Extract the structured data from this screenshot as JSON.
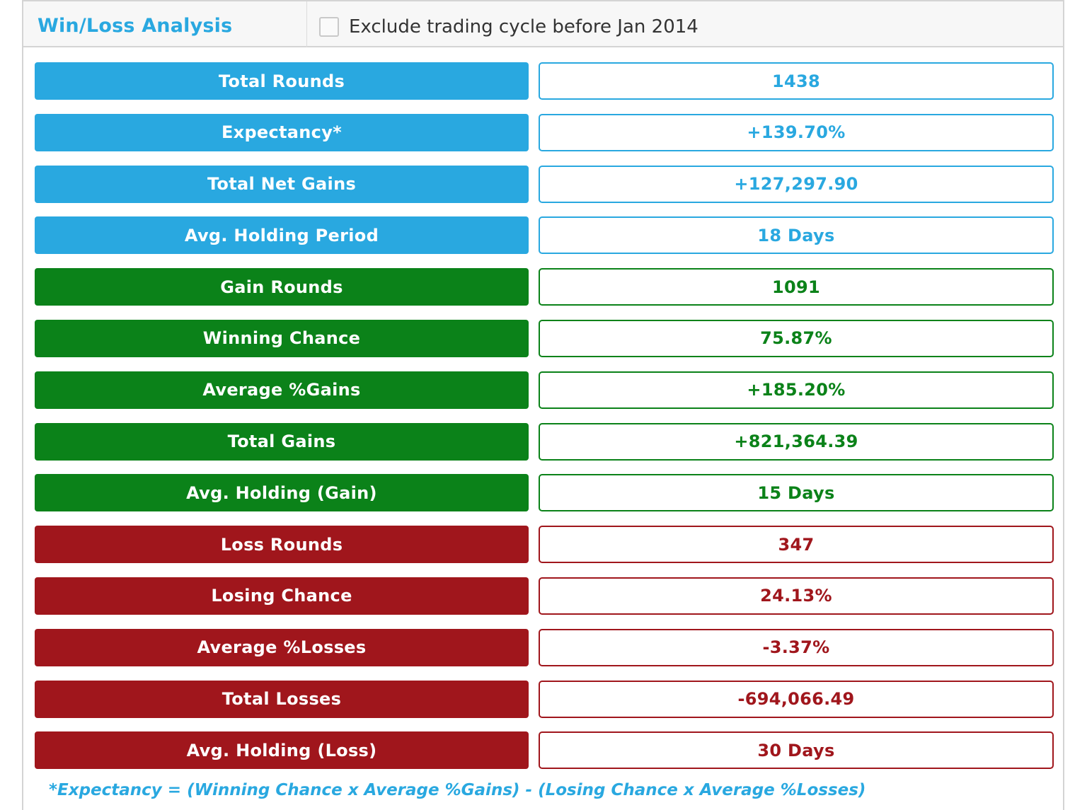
{
  "header": {
    "title": "Win/Loss Analysis",
    "filter_label": "Exclude trading cycle before Jan 2014",
    "filter_checked": false
  },
  "colors": {
    "blue": "#29a8e0",
    "green": "#0b8219",
    "red": "#a0161c"
  },
  "rows": [
    {
      "label": "Total Rounds",
      "value": "1438",
      "group": "blue"
    },
    {
      "label": "Expectancy*",
      "value": "+139.70%",
      "group": "blue"
    },
    {
      "label": "Total Net Gains",
      "value": "+127,297.90",
      "group": "blue"
    },
    {
      "label": "Avg. Holding Period",
      "value": "18 Days",
      "group": "blue"
    },
    {
      "label": "Gain Rounds",
      "value": "1091",
      "group": "green"
    },
    {
      "label": "Winning Chance",
      "value": "75.87%",
      "group": "green"
    },
    {
      "label": "Average %Gains",
      "value": "+185.20%",
      "group": "green"
    },
    {
      "label": "Total Gains",
      "value": "+821,364.39",
      "group": "green"
    },
    {
      "label": "Avg. Holding (Gain)",
      "value": "15 Days",
      "group": "green"
    },
    {
      "label": "Loss Rounds",
      "value": "347",
      "group": "red"
    },
    {
      "label": "Losing Chance",
      "value": "24.13%",
      "group": "red"
    },
    {
      "label": "Average %Losses",
      "value": "-3.37%",
      "group": "red"
    },
    {
      "label": "Total Losses",
      "value": "-694,066.49",
      "group": "red"
    },
    {
      "label": "Avg. Holding (Loss)",
      "value": "30 Days",
      "group": "red"
    }
  ],
  "footnote": "*Expectancy = (Winning Chance x Average %Gains) - (Losing Chance x Average %Losses)"
}
